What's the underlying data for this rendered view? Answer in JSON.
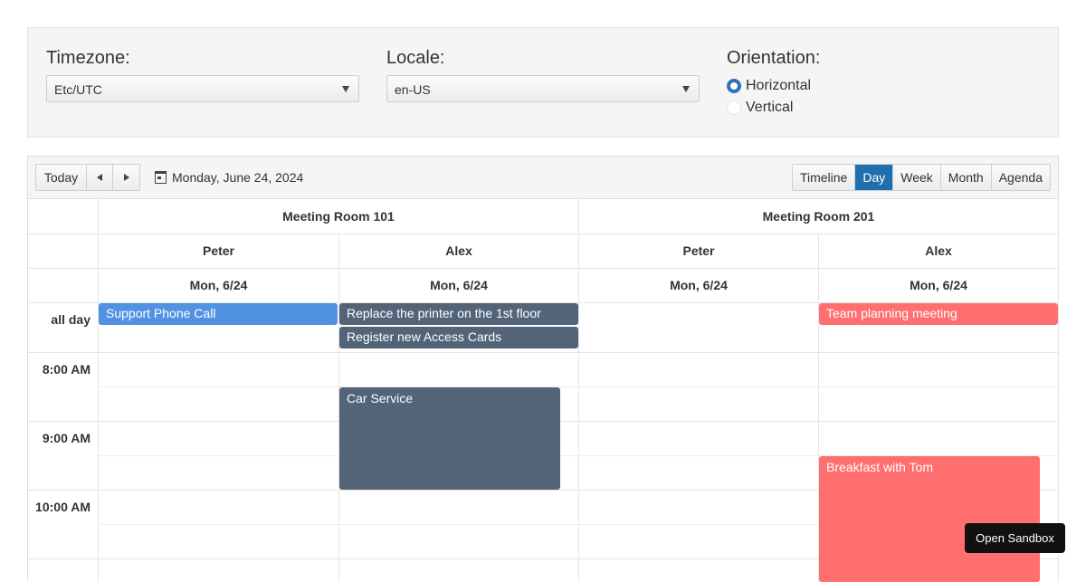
{
  "config": {
    "timezone_label": "Timezone:",
    "timezone_value": "Etc/UTC",
    "locale_label": "Locale:",
    "locale_value": "en-US",
    "orientation_label": "Orientation:",
    "orientation_options": [
      "Horizontal",
      "Vertical"
    ],
    "orientation_selected": "Horizontal"
  },
  "toolbar": {
    "today_label": "Today",
    "date_text": "Monday, June 24, 2024",
    "views": [
      "Timeline",
      "Day",
      "Week",
      "Month",
      "Agenda"
    ],
    "active_view": "Day"
  },
  "scheduler": {
    "rooms": [
      "Meeting Room 101",
      "Meeting Room 201"
    ],
    "people": [
      "Peter",
      "Alex",
      "Peter",
      "Alex"
    ],
    "dates": [
      "Mon, 6/24",
      "Mon, 6/24",
      "Mon, 6/24",
      "Mon, 6/24"
    ],
    "all_day_label": "all day",
    "times": [
      "8:00 AM",
      "9:00 AM",
      "10:00 AM"
    ],
    "events": [
      {
        "title": "Support Phone Call"
      },
      {
        "title": "Replace the printer on the 1st floor"
      },
      {
        "title": "Register new Access Cards"
      },
      {
        "title": "Team planning meeting"
      },
      {
        "title": "Car Service"
      },
      {
        "title": "Breakfast with Tom"
      }
    ]
  },
  "colors": {
    "blue_event": "#5192e3",
    "slate_event": "#536479",
    "red_event": "#ff6f6f",
    "active_view": "#1f6fae"
  },
  "sandbox_button": "Open Sandbox"
}
